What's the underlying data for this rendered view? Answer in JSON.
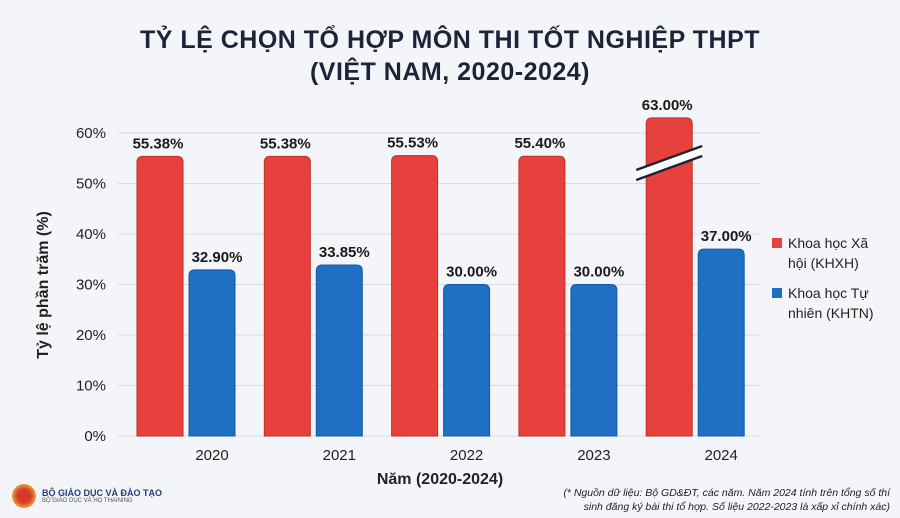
{
  "chart_data": {
    "type": "bar",
    "title": "TỶ LỆ CHỌN TỔ HỢP MÔN THI TỐT NGHIỆP THPT",
    "subtitle": "(VIỆT NAM, 2020-2024)",
    "xlabel": "Năm (2020-2024)",
    "ylabel": "Tỷ lệ phần trăm (%)",
    "ylim": [
      0,
      60
    ],
    "yticks": [
      "0%",
      "10%",
      "20%",
      "30%",
      "40%",
      "50%",
      "60%"
    ],
    "categories": [
      "2020",
      "2021",
      "2022",
      "2023",
      "2024"
    ],
    "series": [
      {
        "name": "Khoa học Xã hội (KHXH)",
        "color": "#e8403c",
        "values": [
          55.38,
          55.38,
          55.53,
          55.4,
          63.0
        ],
        "labels": [
          "55.38%",
          "55.38%",
          "55.53%",
          "55.40%",
          "63.00%"
        ]
      },
      {
        "name": "Khoa học Tự nhiên (KHTN)",
        "color": "#1f6fc4",
        "values": [
          32.9,
          33.85,
          30.0,
          30.0,
          37.0
        ],
        "labels": [
          "32.90%",
          "33.85%",
          "30.00%",
          "30.00%",
          "37.00%"
        ]
      }
    ],
    "grid": true,
    "legend": "right",
    "axis_break_on": "2024 KHXH"
  },
  "footnote": [
    "(* Nguồn dữ liệu: Bộ GD&ĐT, các năm. Năm 2024 tính trên tổng số thí",
    "sinh đăng ký bài thi tổ hợp. Số liệu 2022-2023 là xấp xỉ chính xác)"
  ],
  "logo": {
    "main": "BỘ GIÁO DỤC VÀ ĐÀO TẠO",
    "sub": "BỘ GIÁO DỤC VÀ HỌ THAINING"
  }
}
